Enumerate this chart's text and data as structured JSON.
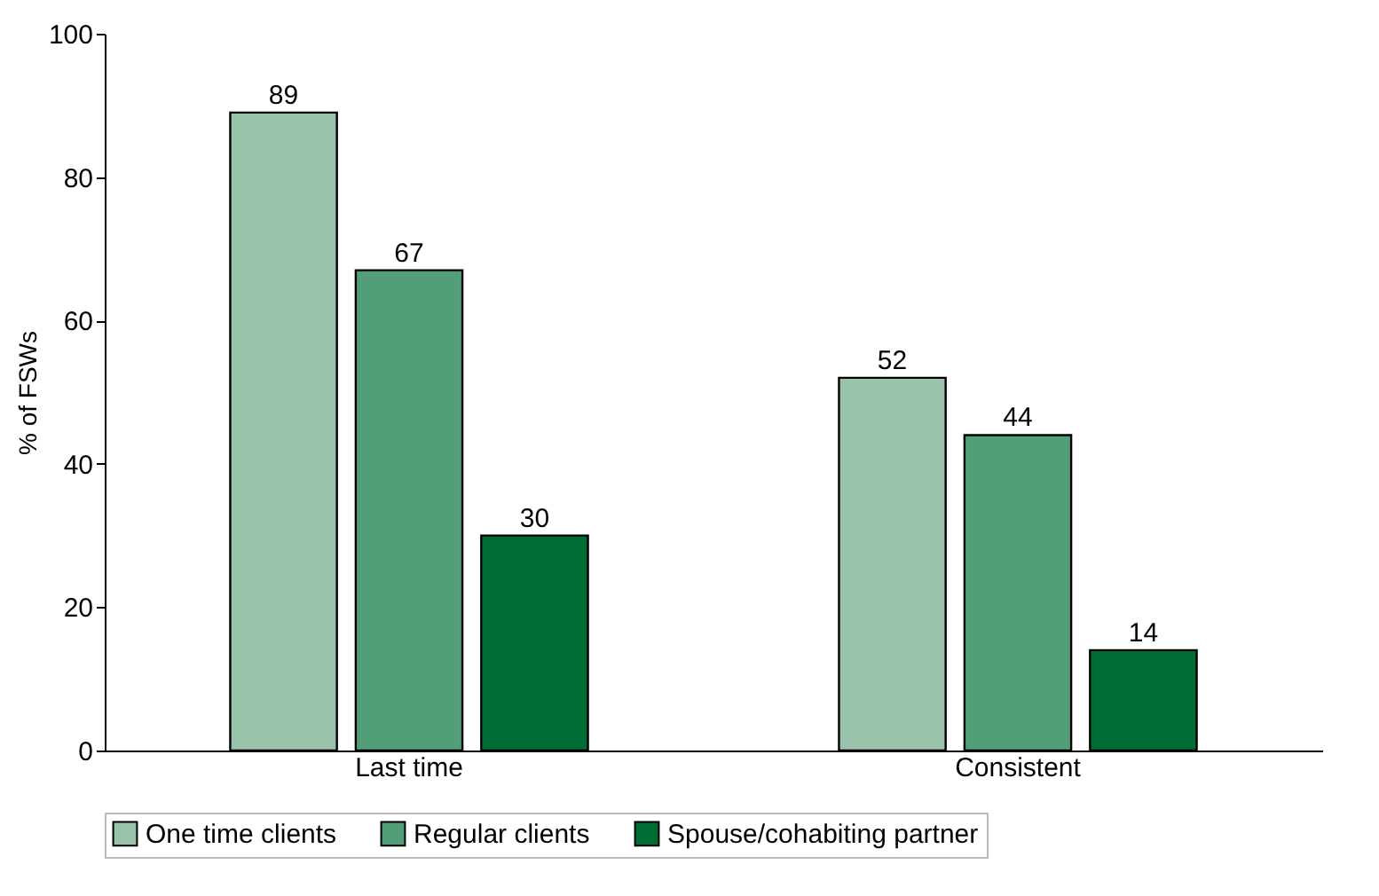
{
  "chart_data": {
    "type": "bar",
    "ylabel": "% of FSWs",
    "categories": [
      "Last time",
      "Consistent"
    ],
    "series": [
      {
        "name": "One time clients",
        "color": "#99c4ab",
        "values": [
          89,
          52
        ]
      },
      {
        "name": "Regular clients",
        "color": "#519e78",
        "values": [
          67,
          44
        ]
      },
      {
        "name": "Spouse/cohabiting partner",
        "color": "#006d34",
        "values": [
          30,
          14
        ]
      }
    ],
    "ylim": [
      0,
      100
    ],
    "yticks": [
      0,
      20,
      40,
      60,
      80,
      100
    ],
    "grid": false,
    "legend": "bottom",
    "data_labels": true
  }
}
